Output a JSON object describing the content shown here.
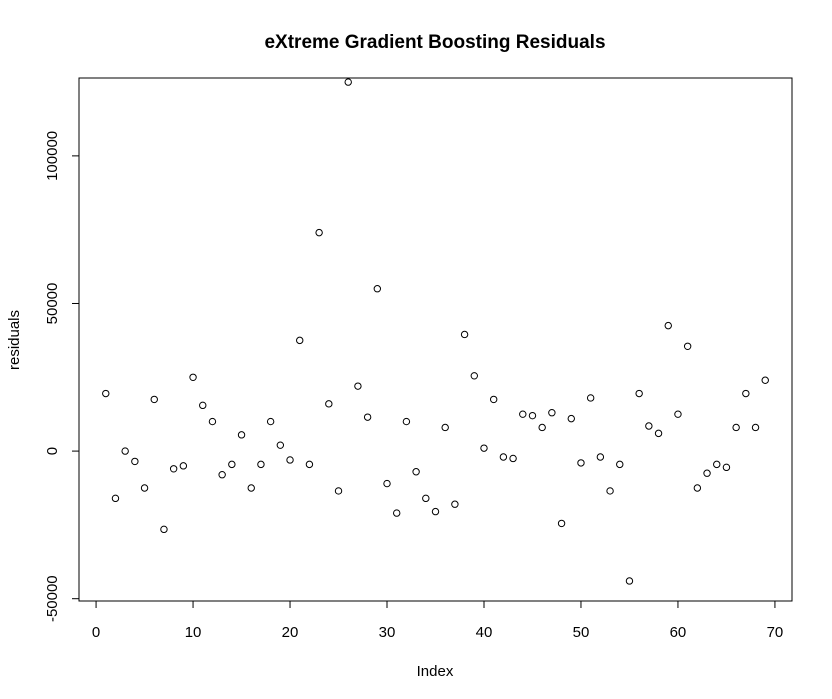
{
  "chart_data": {
    "type": "scatter",
    "title": "eXtreme Gradient Boosting Residuals",
    "xlabel": "Index",
    "ylabel": "residuals",
    "xlim": [
      -1.76,
      71.76
    ],
    "ylim": [
      -50780,
      126380
    ],
    "xticks": [
      0,
      10,
      20,
      30,
      40,
      50,
      60,
      70
    ],
    "yticks": [
      -50000,
      0,
      50000,
      100000
    ],
    "xtick_labels": [
      "0",
      "10",
      "20",
      "30",
      "40",
      "50",
      "60",
      "70"
    ],
    "ytick_labels": [
      "-50000",
      "0",
      "50000",
      "100000"
    ],
    "grid": false,
    "legend": "none",
    "marker_color": "#000000",
    "points": [
      {
        "x": 1,
        "y": 19500
      },
      {
        "x": 2,
        "y": -16000
      },
      {
        "x": 3,
        "y": 0
      },
      {
        "x": 4,
        "y": -3500
      },
      {
        "x": 5,
        "y": -12500
      },
      {
        "x": 6,
        "y": 17500
      },
      {
        "x": 7,
        "y": -26500
      },
      {
        "x": 8,
        "y": -6000
      },
      {
        "x": 9,
        "y": -5000
      },
      {
        "x": 10,
        "y": 25000
      },
      {
        "x": 11,
        "y": 15500
      },
      {
        "x": 12,
        "y": 10000
      },
      {
        "x": 13,
        "y": -8000
      },
      {
        "x": 14,
        "y": -4500
      },
      {
        "x": 15,
        "y": 5500
      },
      {
        "x": 16,
        "y": -12500
      },
      {
        "x": 17,
        "y": -4500
      },
      {
        "x": 18,
        "y": 10000
      },
      {
        "x": 19,
        "y": 2000
      },
      {
        "x": 20,
        "y": -3000
      },
      {
        "x": 21,
        "y": 37500
      },
      {
        "x": 22,
        "y": -4500
      },
      {
        "x": 23,
        "y": 74000
      },
      {
        "x": 24,
        "y": 16000
      },
      {
        "x": 25,
        "y": -13500
      },
      {
        "x": 26,
        "y": 125000
      },
      {
        "x": 27,
        "y": 22000
      },
      {
        "x": 28,
        "y": 11500
      },
      {
        "x": 29,
        "y": 55000
      },
      {
        "x": 30,
        "y": -11000
      },
      {
        "x": 31,
        "y": -21000
      },
      {
        "x": 32,
        "y": 10000
      },
      {
        "x": 33,
        "y": -7000
      },
      {
        "x": 34,
        "y": -16000
      },
      {
        "x": 35,
        "y": -20500
      },
      {
        "x": 36,
        "y": 8000
      },
      {
        "x": 37,
        "y": -18000
      },
      {
        "x": 38,
        "y": 39500
      },
      {
        "x": 39,
        "y": 25500
      },
      {
        "x": 40,
        "y": 1000
      },
      {
        "x": 41,
        "y": 17500
      },
      {
        "x": 42,
        "y": -2000
      },
      {
        "x": 43,
        "y": -2500
      },
      {
        "x": 44,
        "y": 12500
      },
      {
        "x": 45,
        "y": 12000
      },
      {
        "x": 46,
        "y": 8000
      },
      {
        "x": 47,
        "y": 13000
      },
      {
        "x": 48,
        "y": -24500
      },
      {
        "x": 49,
        "y": 11000
      },
      {
        "x": 50,
        "y": -4000
      },
      {
        "x": 51,
        "y": 18000
      },
      {
        "x": 52,
        "y": -2000
      },
      {
        "x": 53,
        "y": -13500
      },
      {
        "x": 54,
        "y": -4500
      },
      {
        "x": 55,
        "y": -44000
      },
      {
        "x": 56,
        "y": 19500
      },
      {
        "x": 57,
        "y": 8500
      },
      {
        "x": 58,
        "y": 6000
      },
      {
        "x": 59,
        "y": 42500
      },
      {
        "x": 60,
        "y": 12500
      },
      {
        "x": 61,
        "y": 35500
      },
      {
        "x": 62,
        "y": -12500
      },
      {
        "x": 63,
        "y": -7500
      },
      {
        "x": 64,
        "y": -4500
      },
      {
        "x": 65,
        "y": -5500
      },
      {
        "x": 66,
        "y": 8000
      },
      {
        "x": 67,
        "y": 19500
      },
      {
        "x": 68,
        "y": 8000
      },
      {
        "x": 69,
        "y": 24000
      }
    ]
  }
}
